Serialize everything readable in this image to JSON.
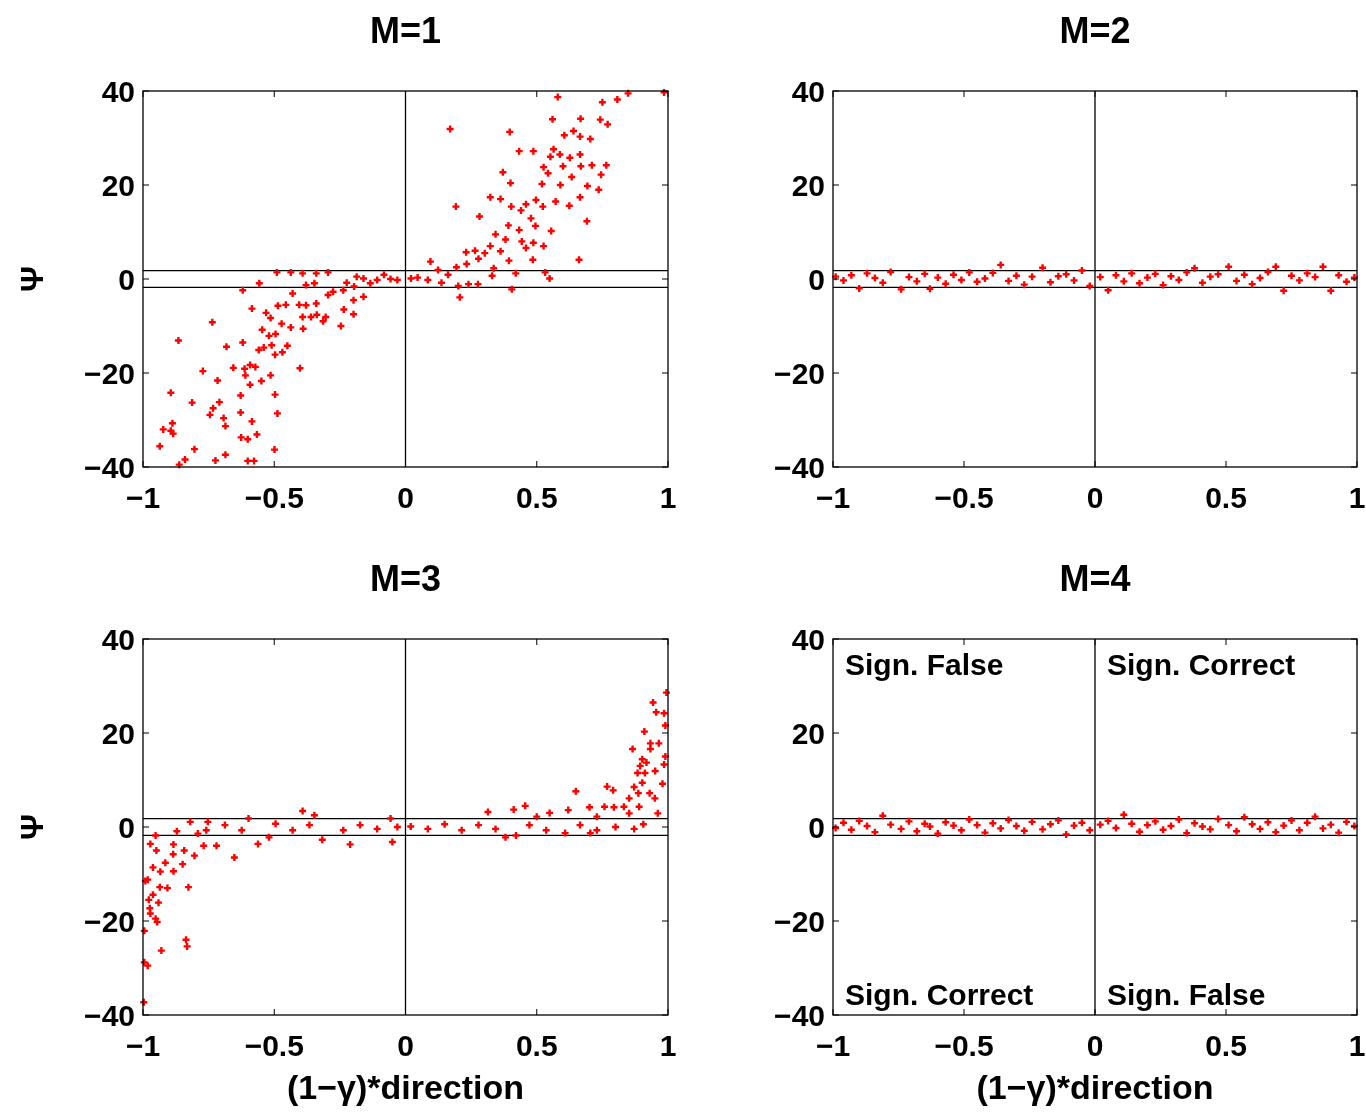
{
  "chart_data": [
    {
      "type": "scatter",
      "title": "M=1",
      "ylabel": "Ψ",
      "color": "#ff0000",
      "marker": "cross",
      "xlim": [
        -1,
        1
      ],
      "ylim": [
        -40,
        40
      ],
      "xticks": [
        -1,
        -0.5,
        0,
        0.5,
        1
      ],
      "yticks": [
        -40,
        -20,
        0,
        20,
        40
      ],
      "ref_lines": [
        {
          "axis": "y",
          "value": 1.8
        },
        {
          "axis": "y",
          "value": -1.8
        },
        {
          "axis": "x",
          "value": 0
        }
      ],
      "x": [
        0.985,
        0.848,
        0.58,
        0.807,
        0.75,
        0.56,
        0.667,
        0.742,
        0.77,
        0.17,
        0.397,
        0.64,
        0.605,
        0.704,
        0.665,
        0.433,
        0.487,
        0.564,
        0.588,
        0.626,
        0.665,
        0.552,
        0.765,
        0.668,
        0.71,
        0.6,
        0.526,
        0.745,
        0.543,
        0.633,
        0.371,
        0.4,
        0.52,
        0.59,
        0.693,
        0.736,
        0.323,
        0.362,
        0.497,
        0.572,
        0.665,
        0.624,
        0.192,
        0.403,
        0.459,
        0.523,
        0.44,
        0.282,
        0.478,
        0.495,
        0.691,
        0.392,
        0.555,
        0.343,
        0.433,
        0.381,
        0.443,
        0.487,
        0.526,
        0.459,
        0.323,
        0.362,
        0.231,
        0.265,
        0.302,
        0.485,
        0.661,
        0.394,
        0.278,
        0.233,
        0.194,
        0.095,
        0.336,
        0.42,
        0.532,
        0.549,
        0.33,
        0.405,
        0.207,
        0.162,
        0.124,
        0.085,
        0.046,
        0.021,
        0.24,
        0.276,
        0.137,
        0.201,
        -0.031,
        -0.057,
        -0.082,
        -0.108,
        -0.134,
        -0.16,
        -0.186,
        -0.196,
        -0.224,
        -0.237,
        -0.276,
        -0.295,
        -0.34,
        -0.347,
        -0.379,
        -0.43,
        -0.392,
        -0.437,
        -0.49,
        -0.557,
        -0.62,
        -0.16,
        -0.198,
        -0.235,
        -0.198,
        -0.295,
        -0.34,
        -0.379,
        -0.405,
        -0.456,
        -0.486,
        -0.392,
        -0.36,
        -0.338,
        -0.304,
        -0.314,
        -0.246,
        -0.39,
        -0.437,
        -0.472,
        -0.514,
        -0.531,
        -0.585,
        -0.546,
        -0.52,
        -0.495,
        -0.45,
        -0.51,
        -0.54,
        -0.559,
        -0.62,
        -0.682,
        -0.736,
        -0.865,
        -0.469,
        -0.497,
        -0.656,
        -0.613,
        -0.402,
        -0.772,
        -0.592,
        -0.572,
        -0.61,
        -0.514,
        -0.549,
        -0.716,
        -0.592,
        -0.894,
        -0.628,
        -0.497,
        -0.813,
        -0.709,
        -0.733,
        -0.628,
        -0.488,
        -0.745,
        -0.693,
        -0.585,
        -0.888,
        -0.686,
        -0.923,
        -0.894,
        -0.885,
        -0.626,
        -0.566,
        -0.601,
        -0.936,
        -0.804,
        -0.499,
        -0.686,
        -0.84,
        -0.724,
        -0.601,
        -0.577,
        -0.862
      ],
      "values": [
        39.7,
        39.5,
        38.7,
        38.2,
        37.6,
        34,
        34.1,
        33.9,
        32.9,
        31.9,
        31.3,
        31.5,
        30.6,
        29.8,
        30.3,
        27.2,
        27.2,
        27.6,
        26.5,
        25.8,
        26.5,
        26,
        24.2,
        24,
        24.2,
        24,
        23.8,
        22.2,
        22.5,
        21.7,
        22.7,
        20.4,
        20.2,
        20,
        19.8,
        19,
        17.4,
        17,
        16.8,
        16.5,
        17.4,
        15.6,
        15.4,
        15.4,
        15.9,
        15.4,
        14.6,
        13.3,
        12.9,
        11.3,
        12.3,
        11.4,
        10.2,
        9.5,
        10.4,
        8.4,
        8,
        7.7,
        7,
        6.6,
        7,
        5.9,
        5.7,
        6,
        5.5,
        4.1,
        4.1,
        3.9,
        4.3,
        3.2,
        2.5,
        3.7,
        2.3,
        1.2,
        1.4,
        0.1,
        0.7,
        -2.2,
        -3.9,
        0.9,
        1.9,
        -0.2,
        0.3,
        0.1,
        -1.1,
        -1.1,
        -0.8,
        -1.5,
        -0.2,
        0,
        0.9,
        -0.2,
        -0.9,
        0.1,
        0.5,
        -1.6,
        -0.8,
        -2.4,
        -2.7,
        1.4,
        1.2,
        -0.9,
        -1.3,
        -3.1,
        1.2,
        1.4,
        1.4,
        -0.9,
        -2.4,
        -3.8,
        -4.5,
        -6.5,
        -7.5,
        -3.4,
        -5.2,
        -5.6,
        -5.5,
        -5.5,
        -5.7,
        -8.1,
        -8.1,
        -7.6,
        -8.1,
        -9,
        -10,
        -10.6,
        -10.3,
        -9.5,
        -8.3,
        -7.2,
        -6.3,
        -10.8,
        -12.1,
        -11.7,
        -14.2,
        -14.1,
        -14.6,
        -15.1,
        -13.5,
        -14.4,
        -9.2,
        -13.1,
        -15.6,
        -16.1,
        -18.9,
        -19.1,
        -19,
        -19.6,
        -18.3,
        -18.7,
        -20.5,
        -20.5,
        -21.7,
        -21.6,
        -22.5,
        -24.2,
        -24.8,
        -24.6,
        -26.3,
        -26.2,
        -27.5,
        -28.4,
        -28.6,
        -28.9,
        -29.6,
        -30.3,
        -30.7,
        -31.3,
        -32,
        -32.3,
        -32.9,
        -33.7,
        -33.1,
        -34.1,
        -35.6,
        -36.2,
        -36.3,
        -37.4,
        -38.4,
        -38.6,
        -38.7,
        -38.7,
        -39.5
      ]
    },
    {
      "type": "scatter",
      "title": "M=2",
      "color": "#ff0000",
      "marker": "cross",
      "xlim": [
        -1,
        1
      ],
      "ylim": [
        -40,
        40
      ],
      "xticks": [
        -1,
        -0.5,
        0,
        0.5,
        1
      ],
      "yticks": [
        -40,
        -20,
        0,
        20,
        40
      ],
      "ref_lines": [
        {
          "axis": "y",
          "value": 1.8
        },
        {
          "axis": "y",
          "value": -1.8
        },
        {
          "axis": "x",
          "value": 0
        }
      ],
      "x": [
        -0.99,
        -0.96,
        -0.93,
        -0.9,
        -0.87,
        -0.84,
        -0.81,
        -0.78,
        -0.74,
        -0.71,
        -0.68,
        -0.65,
        -0.63,
        -0.6,
        -0.57,
        -0.54,
        -0.51,
        -0.48,
        -0.45,
        -0.42,
        -0.39,
        -0.36,
        -0.33,
        -0.3,
        -0.27,
        -0.24,
        -0.2,
        -0.17,
        -0.14,
        -0.11,
        -0.08,
        -0.05,
        -0.02,
        0.02,
        0.05,
        0.08,
        0.11,
        0.14,
        0.17,
        0.2,
        0.23,
        0.26,
        0.29,
        0.32,
        0.35,
        0.38,
        0.41,
        0.44,
        0.47,
        0.51,
        0.54,
        0.57,
        0.6,
        0.63,
        0.66,
        0.69,
        0.72,
        0.75,
        0.78,
        0.81,
        0.84,
        0.87,
        0.9,
        0.93,
        0.96,
        0.99
      ],
      "values": [
        0.5,
        -0.3,
        0.8,
        -2,
        1.2,
        0.2,
        -0.8,
        1.5,
        -2.2,
        0.4,
        -0.5,
        1.1,
        -2.1,
        0.3,
        -1,
        0.9,
        -0.2,
        1.4,
        -0.6,
        0.1,
        1.3,
        3,
        -0.4,
        0.7,
        -1.2,
        0.5,
        2.4,
        -0.7,
        0.6,
        1,
        -0.3,
        1.8,
        -1.5,
        0.4,
        -2.4,
        0.8,
        -0.5,
        1.2,
        -0.9,
        0.3,
        1.1,
        -1.3,
        0.6,
        -0.2,
        1.4,
        2.3,
        -0.8,
        0.5,
        1,
        2.6,
        -0.4,
        0.9,
        -1.1,
        0.2,
        1.5,
        2.6,
        -2.5,
        0.7,
        -0.3,
        1.2,
        0.4,
        2.6,
        -2.5,
        0.8,
        -0.6,
        0.3
      ]
    },
    {
      "type": "scatter",
      "title": "M=3",
      "xlabel": "(1−γ)*direction",
      "ylabel": "Ψ",
      "color": "#ff0000",
      "marker": "cross",
      "xlim": [
        -1,
        1
      ],
      "ylim": [
        -40,
        40
      ],
      "xticks": [
        -1,
        -0.5,
        0,
        0.5,
        1
      ],
      "yticks": [
        -40,
        -20,
        0,
        20,
        40
      ],
      "ref_lines": [
        {
          "axis": "y",
          "value": 1.8
        },
        {
          "axis": "y",
          "value": -1.8
        },
        {
          "axis": "x",
          "value": 0
        }
      ],
      "x": [
        0.994,
        0.943,
        0.955,
        0.985,
        0.99,
        0.91,
        0.965,
        0.933,
        0.865,
        0.933,
        0.99,
        0.902,
        0.918,
        0.951,
        0.985,
        0.894,
        0.884,
        0.912,
        0.902,
        0.871,
        0.979,
        0.768,
        0.791,
        0.649,
        0.887,
        0.93,
        0.95,
        0.852,
        0.89,
        0.832,
        0.794,
        0.758,
        0.701,
        0.456,
        0.412,
        0.314,
        0.62,
        0.549,
        0.852,
        0.961,
        0.729,
        0.5,
        0.906,
        0.871,
        0.8,
        0.704,
        0.608,
        0.421,
        0.381,
        0.02,
        0.085,
        0.149,
        0.214,
        0.278,
        0.343,
        0.472,
        0.536,
        0.665,
        0.729,
        -0.031,
        -0.057,
        -0.05,
        -0.108,
        -0.173,
        -0.211,
        -0.237,
        -0.317,
        -0.366,
        -0.392,
        -0.347,
        -0.43,
        -0.495,
        -0.52,
        -0.562,
        -0.598,
        -0.624,
        -0.688,
        -0.753,
        -0.759,
        -0.82,
        -0.791,
        -0.72,
        -0.769,
        -0.804,
        -0.843,
        -0.652,
        -0.849,
        -0.885,
        -0.884,
        -0.871,
        -0.952,
        -0.972,
        -0.949,
        -0.915,
        -0.934,
        -0.962,
        -0.884,
        -0.991,
        -0.982,
        -0.936,
        -0.907,
        -0.827,
        -0.962,
        -0.978,
        -0.941,
        -0.974,
        -0.972,
        -0.952,
        -0.946,
        -0.995,
        -0.836,
        -0.832,
        -0.93,
        -0.995,
        -0.982,
        -0.997
      ],
      "values": [
        28.6,
        26.5,
        24.4,
        24.2,
        21.6,
        20.3,
        17.8,
        17.8,
        16.6,
        16.6,
        15,
        14.4,
        13.7,
        11.9,
        13.3,
        13,
        11.5,
        11.5,
        9.4,
        8.5,
        9.2,
        8.6,
        7.8,
        7.6,
        7.2,
        7.2,
        6.1,
        6.1,
        4.3,
        4.3,
        4.2,
        4.3,
        4.2,
        4.5,
        3.7,
        3.2,
        3.6,
        3,
        2.9,
        2.9,
        2.2,
        2.2,
        0.6,
        -0.4,
        0,
        -1.3,
        -1.3,
        -1.8,
        -2.2,
        0.1,
        -0.4,
        0.6,
        -0.7,
        0.4,
        -0.4,
        0.4,
        -0.7,
        0.4,
        -0.7,
        0,
        1.8,
        -3.2,
        -0.4,
        0.4,
        -3.7,
        -0.7,
        -2.7,
        0.4,
        3.4,
        2.5,
        -0.7,
        0.7,
        -2.2,
        -3.6,
        1.8,
        -0.7,
        0.4,
        1.1,
        -0.7,
        1.1,
        -1.4,
        -4,
        -4,
        -6.1,
        -5,
        -6.5,
        -7.9,
        -5.8,
        -3.7,
        -0.9,
        -1.8,
        -3.6,
        -5,
        -7.6,
        -9.5,
        -8.6,
        -9.4,
        -11.5,
        -11.2,
        -12.8,
        -13,
        -12.8,
        -14.4,
        -15.5,
        -16.1,
        -17.3,
        -18.4,
        -19.5,
        -20.2,
        -22.1,
        -24,
        -25.4,
        -26.3,
        -28.8,
        -29.5,
        -37.3
      ]
    },
    {
      "type": "scatter",
      "title": "M=4",
      "xlabel": "(1−γ)*direction",
      "color": "#ff0000",
      "marker": "cross",
      "xlim": [
        -1,
        1
      ],
      "ylim": [
        -40,
        40
      ],
      "xticks": [
        -1,
        -0.5,
        0,
        0.5,
        1
      ],
      "yticks": [
        -40,
        -20,
        0,
        20,
        40
      ],
      "ref_lines": [
        {
          "axis": "y",
          "value": 1.8
        },
        {
          "axis": "y",
          "value": -1.8
        },
        {
          "axis": "x",
          "value": 0
        }
      ],
      "annotations": [
        "Sign. False",
        "Sign. Correct",
        "Sign. Correct",
        "Sign. False"
      ],
      "x": [
        -0.99,
        -0.96,
        -0.93,
        -0.9,
        -0.87,
        -0.84,
        -0.81,
        -0.78,
        -0.74,
        -0.71,
        -0.68,
        -0.65,
        -0.63,
        -0.6,
        -0.57,
        -0.54,
        -0.51,
        -0.48,
        -0.45,
        -0.42,
        -0.39,
        -0.36,
        -0.33,
        -0.3,
        -0.27,
        -0.24,
        -0.2,
        -0.17,
        -0.14,
        -0.11,
        -0.08,
        -0.05,
        -0.02,
        0.02,
        0.05,
        0.08,
        0.11,
        0.14,
        0.17,
        0.2,
        0.23,
        0.26,
        0.29,
        0.32,
        0.35,
        0.38,
        0.41,
        0.44,
        0.47,
        0.51,
        0.54,
        0.57,
        0.6,
        0.63,
        0.66,
        0.69,
        0.72,
        0.75,
        0.78,
        0.81,
        0.84,
        0.87,
        0.9,
        0.93,
        0.96,
        0.99
      ],
      "values": [
        -0.2,
        0.9,
        -0.6,
        1.3,
        0.2,
        -1.1,
        2.4,
        0.5,
        -0.4,
        1.2,
        -0.9,
        0.7,
        0.1,
        -1.4,
        1,
        0.3,
        -0.7,
        1.6,
        0.4,
        -1.2,
        0.8,
        -0.3,
        1.5,
        0.2,
        -0.8,
        1.1,
        -0.5,
        0.6,
        1.4,
        -1.6,
        0.3,
        0.9,
        -0.7,
        0.5,
        1.3,
        -0.2,
        2.6,
        0.7,
        -1,
        0.4,
        1.2,
        -0.6,
        0.2,
        1.6,
        -1.3,
        0.8,
        0.1,
        -0.5,
        1.7,
        0.4,
        -0.9,
        2.1,
        0.6,
        -0.4,
        1,
        -1.1,
        0.3,
        1.4,
        -0.7,
        0.9,
        2.2,
        -0.3,
        0.5,
        -1.2,
        1.1,
        0.2
      ]
    }
  ]
}
